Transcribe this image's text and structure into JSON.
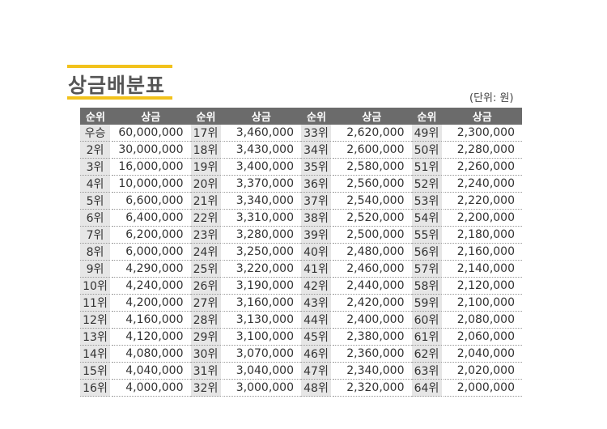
{
  "title": "상금배분표",
  "unit": "(단위: 원)",
  "colors": {
    "accent": "#f2c21b",
    "header_bg": "#6b6b6b",
    "rank_bg": "#e6e6e6"
  },
  "headers": {
    "rank": "순위",
    "prize": "상금"
  },
  "rows": [
    {
      "rank": "우승",
      "prize": "60,000,000"
    },
    {
      "rank": "2위",
      "prize": "30,000,000"
    },
    {
      "rank": "3위",
      "prize": "16,000,000"
    },
    {
      "rank": "4위",
      "prize": "10,000,000"
    },
    {
      "rank": "5위",
      "prize": "6,600,000"
    },
    {
      "rank": "6위",
      "prize": "6,400,000"
    },
    {
      "rank": "7위",
      "prize": "6,200,000"
    },
    {
      "rank": "8위",
      "prize": "6,000,000"
    },
    {
      "rank": "9위",
      "prize": "4,290,000"
    },
    {
      "rank": "10위",
      "prize": "4,240,000"
    },
    {
      "rank": "11위",
      "prize": "4,200,000"
    },
    {
      "rank": "12위",
      "prize": "4,160,000"
    },
    {
      "rank": "13위",
      "prize": "4,120,000"
    },
    {
      "rank": "14위",
      "prize": "4,080,000"
    },
    {
      "rank": "15위",
      "prize": "4,040,000"
    },
    {
      "rank": "16위",
      "prize": "4,000,000"
    },
    {
      "rank": "17위",
      "prize": "3,460,000"
    },
    {
      "rank": "18위",
      "prize": "3,430,000"
    },
    {
      "rank": "19위",
      "prize": "3,400,000"
    },
    {
      "rank": "20위",
      "prize": "3,370,000"
    },
    {
      "rank": "21위",
      "prize": "3,340,000"
    },
    {
      "rank": "22위",
      "prize": "3,310,000"
    },
    {
      "rank": "23위",
      "prize": "3,280,000"
    },
    {
      "rank": "24위",
      "prize": "3,250,000"
    },
    {
      "rank": "25위",
      "prize": "3,220,000"
    },
    {
      "rank": "26위",
      "prize": "3,190,000"
    },
    {
      "rank": "27위",
      "prize": "3,160,000"
    },
    {
      "rank": "28위",
      "prize": "3,130,000"
    },
    {
      "rank": "29위",
      "prize": "3,100,000"
    },
    {
      "rank": "30위",
      "prize": "3,070,000"
    },
    {
      "rank": "31위",
      "prize": "3,040,000"
    },
    {
      "rank": "32위",
      "prize": "3,000,000"
    },
    {
      "rank": "33위",
      "prize": "2,620,000"
    },
    {
      "rank": "34위",
      "prize": "2,600,000"
    },
    {
      "rank": "35위",
      "prize": "2,580,000"
    },
    {
      "rank": "36위",
      "prize": "2,560,000"
    },
    {
      "rank": "37위",
      "prize": "2,540,000"
    },
    {
      "rank": "38위",
      "prize": "2,520,000"
    },
    {
      "rank": "39위",
      "prize": "2,500,000"
    },
    {
      "rank": "40위",
      "prize": "2,480,000"
    },
    {
      "rank": "41위",
      "prize": "2,460,000"
    },
    {
      "rank": "42위",
      "prize": "2,440,000"
    },
    {
      "rank": "43위",
      "prize": "2,420,000"
    },
    {
      "rank": "44위",
      "prize": "2,400,000"
    },
    {
      "rank": "45위",
      "prize": "2,380,000"
    },
    {
      "rank": "46위",
      "prize": "2,360,000"
    },
    {
      "rank": "47위",
      "prize": "2,340,000"
    },
    {
      "rank": "48위",
      "prize": "2,320,000"
    },
    {
      "rank": "49위",
      "prize": "2,300,000"
    },
    {
      "rank": "50위",
      "prize": "2,280,000"
    },
    {
      "rank": "51위",
      "prize": "2,260,000"
    },
    {
      "rank": "52위",
      "prize": "2,240,000"
    },
    {
      "rank": "53위",
      "prize": "2,220,000"
    },
    {
      "rank": "54위",
      "prize": "2,200,000"
    },
    {
      "rank": "55위",
      "prize": "2,180,000"
    },
    {
      "rank": "56위",
      "prize": "2,160,000"
    },
    {
      "rank": "57위",
      "prize": "2,140,000"
    },
    {
      "rank": "58위",
      "prize": "2,120,000"
    },
    {
      "rank": "59위",
      "prize": "2,100,000"
    },
    {
      "rank": "60위",
      "prize": "2,080,000"
    },
    {
      "rank": "61위",
      "prize": "2,060,000"
    },
    {
      "rank": "62위",
      "prize": "2,040,000"
    },
    {
      "rank": "63위",
      "prize": "2,020,000"
    },
    {
      "rank": "64위",
      "prize": "2,000,000"
    }
  ]
}
